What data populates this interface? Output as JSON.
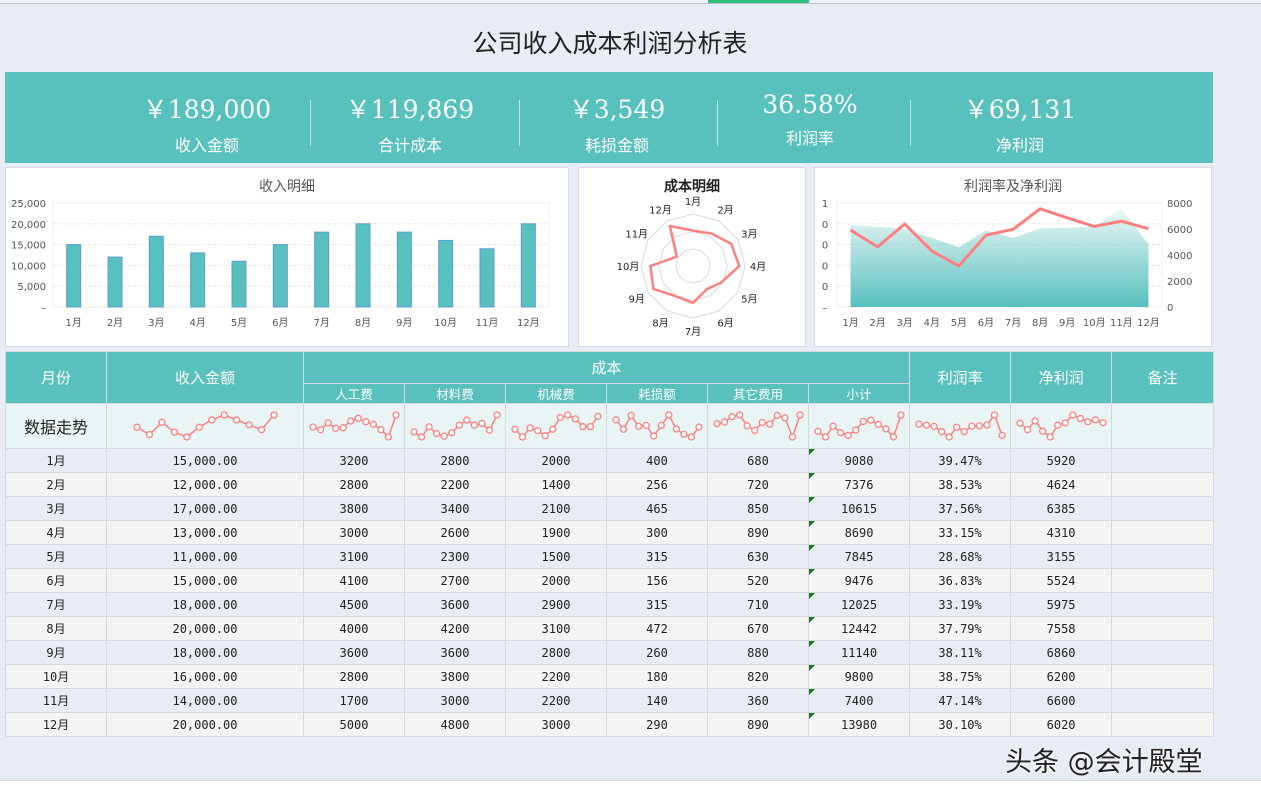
{
  "title": "公司收入成本利润分析表",
  "kpis": [
    {
      "value": "￥189,000",
      "label": "收入金额"
    },
    {
      "value": "￥119,869",
      "label": "合计成本"
    },
    {
      "value": "￥3,549",
      "label": "耗损金额"
    },
    {
      "value": "36.58%",
      "label": "利润率"
    },
    {
      "value": "￥69,131",
      "label": "净利润"
    }
  ],
  "colors": {
    "teal": "#58c0bd",
    "line": "#ff7f7f",
    "band": "#e8f5f4"
  },
  "chart_data": [
    {
      "type": "bar",
      "title": "收入明细",
      "categories": [
        "1月",
        "2月",
        "3月",
        "4月",
        "5月",
        "6月",
        "7月",
        "8月",
        "9月",
        "10月",
        "11月",
        "12月"
      ],
      "values": [
        15000,
        12000,
        17000,
        13000,
        11000,
        15000,
        18000,
        20000,
        18000,
        16000,
        14000,
        20000
      ],
      "ylim": [
        0,
        25000
      ],
      "yticks": [
        "–",
        "5,000",
        "10,000",
        "15,000",
        "20,000",
        "25,000"
      ],
      "grid": true
    },
    {
      "type": "radar",
      "title": "成本明细",
      "categories": [
        "1月",
        "2月",
        "3月",
        "4月",
        "5月",
        "6月",
        "7月",
        "8月",
        "9月",
        "10月",
        "11月",
        "12月"
      ],
      "values": [
        680,
        720,
        850,
        890,
        630,
        520,
        710,
        670,
        880,
        820,
        360,
        890
      ],
      "rlim": [
        0,
        1000
      ]
    },
    {
      "type": "line+area",
      "title": "利润率及净利润",
      "categories": [
        "1月",
        "2月",
        "3月",
        "4月",
        "5月",
        "6月",
        "7月",
        "8月",
        "9月",
        "10月",
        "11月",
        "12月"
      ],
      "area": {
        "values": [
          0.3947,
          0.3853,
          0.3756,
          0.3315,
          0.2868,
          0.3683,
          0.3319,
          0.3779,
          0.3811,
          0.3875,
          0.4714,
          0.301
        ],
        "ylim": [
          0,
          0.5
        ],
        "yticks": [
          "–",
          "0",
          "0",
          "0",
          "0",
          "1"
        ]
      },
      "line": {
        "values": [
          5920,
          4624,
          6385,
          4310,
          3155,
          5524,
          5975,
          7558,
          6860,
          6200,
          6600,
          6020
        ],
        "ylim": [
          0,
          8000
        ],
        "yticks": [
          "0",
          "2000",
          "4000",
          "6000",
          "8000"
        ]
      }
    }
  ],
  "table": {
    "headers": {
      "month": "月份",
      "income": "收入金额",
      "cost": "成本",
      "sub": [
        "人工费",
        "材料费",
        "机械费",
        "耗损额",
        "其它费用",
        "小计"
      ],
      "rate": "利润率",
      "profit": "净利润",
      "note": "备注"
    },
    "trend_label": "数据走势",
    "rows": [
      [
        "1月",
        "15,000.00",
        "3200",
        "2800",
        "2000",
        "400",
        "680",
        "9080",
        "39.47%",
        "5920",
        ""
      ],
      [
        "2月",
        "12,000.00",
        "2800",
        "2200",
        "1400",
        "256",
        "720",
        "7376",
        "38.53%",
        "4624",
        ""
      ],
      [
        "3月",
        "17,000.00",
        "3800",
        "3400",
        "2100",
        "465",
        "850",
        "10615",
        "37.56%",
        "6385",
        ""
      ],
      [
        "4月",
        "13,000.00",
        "3000",
        "2600",
        "1900",
        "300",
        "890",
        "8690",
        "33.15%",
        "4310",
        ""
      ],
      [
        "5月",
        "11,000.00",
        "3100",
        "2300",
        "1500",
        "315",
        "630",
        "7845",
        "28.68%",
        "3155",
        ""
      ],
      [
        "6月",
        "15,000.00",
        "4100",
        "2700",
        "2000",
        "156",
        "520",
        "9476",
        "36.83%",
        "5524",
        ""
      ],
      [
        "7月",
        "18,000.00",
        "4500",
        "3600",
        "2900",
        "315",
        "710",
        "12025",
        "33.19%",
        "5975",
        ""
      ],
      [
        "8月",
        "20,000.00",
        "4000",
        "4200",
        "3100",
        "472",
        "670",
        "12442",
        "37.79%",
        "7558",
        ""
      ],
      [
        "9月",
        "18,000.00",
        "3600",
        "3600",
        "2800",
        "260",
        "880",
        "11140",
        "38.11%",
        "6860",
        ""
      ],
      [
        "10月",
        "16,000.00",
        "2800",
        "3800",
        "2200",
        "180",
        "820",
        "9800",
        "38.75%",
        "6200",
        ""
      ],
      [
        "11月",
        "14,000.00",
        "1700",
        "3000",
        "2200",
        "140",
        "360",
        "7400",
        "47.14%",
        "6600",
        ""
      ],
      [
        "12月",
        "20,000.00",
        "5000",
        "4800",
        "3000",
        "290",
        "890",
        "13980",
        "30.10%",
        "6020",
        ""
      ]
    ]
  },
  "watermark": "头条 @会计殿堂"
}
